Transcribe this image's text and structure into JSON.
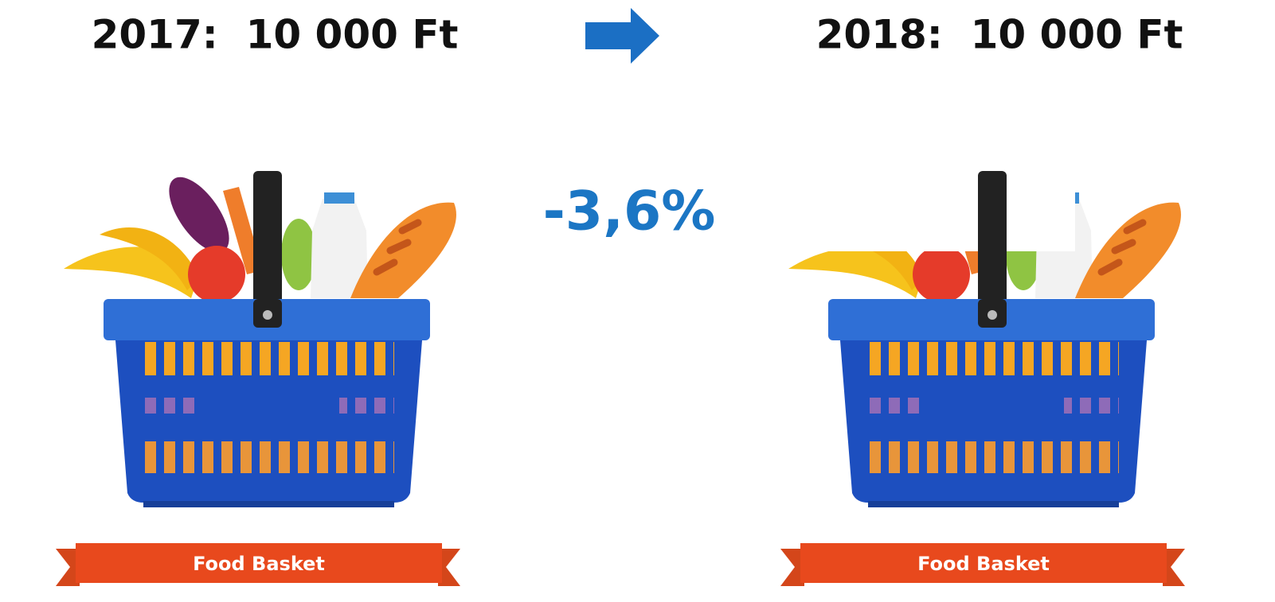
{
  "left": {
    "label": "2017:  10 000 Ft",
    "banner": "Food Basket"
  },
  "right": {
    "label": "2018:  10 000 Ft",
    "banner": "Food Basket"
  },
  "change": "-3,6%"
}
